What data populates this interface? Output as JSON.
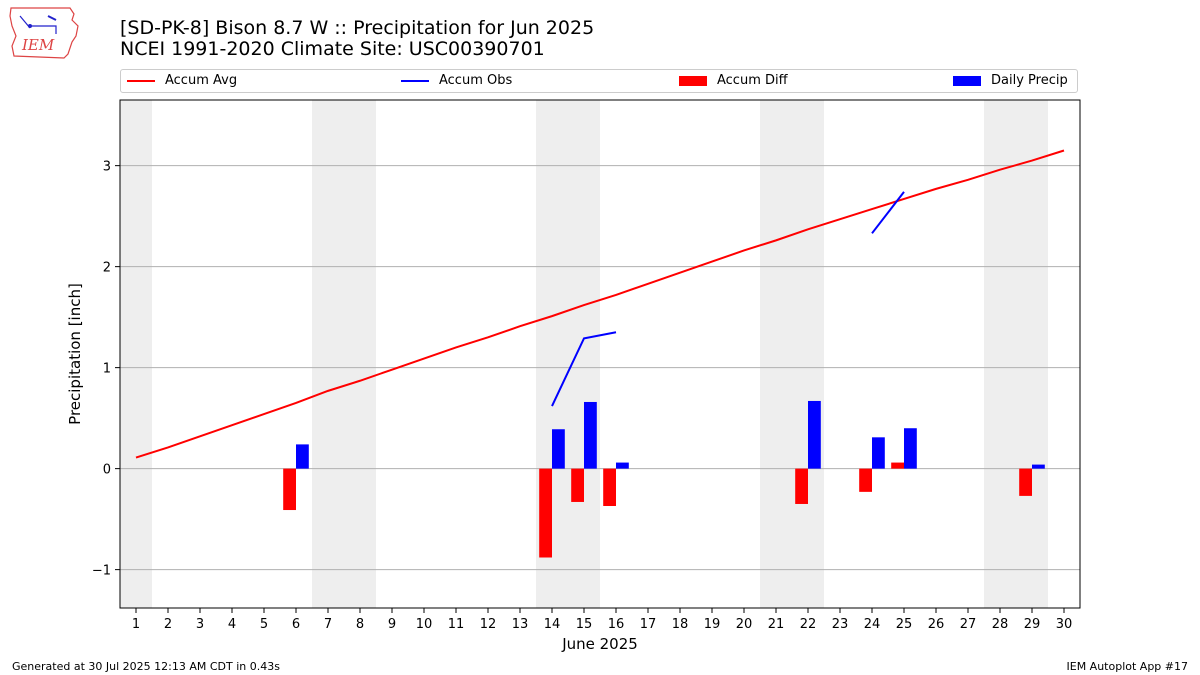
{
  "header": {
    "title_line1": "[SD-PK-8] Bison 8.7 W :: Precipitation for Jun 2025",
    "title_line2": "NCEI 1991-2020 Climate Site: USC00390701",
    "logo_text": "IEM"
  },
  "legend": {
    "accum_avg": "Accum Avg",
    "accum_obs": "Accum Obs",
    "accum_diff": "Accum Diff",
    "daily_precip": "Daily Precip"
  },
  "footer": {
    "generated": "Generated at 30 Jul 2025 12:13 AM CDT in 0.43s",
    "app": "IEM Autoplot App #17"
  },
  "colors": {
    "accum_avg": "#ff0000",
    "accum_obs": "#0000ff",
    "accum_diff": "#ff0000",
    "daily_precip": "#0000ff",
    "weekend_shade": "#eeeeee",
    "grid": "#b0b0b0"
  },
  "chart_data": {
    "type": "bar",
    "xlabel": "June 2025",
    "ylabel": "Precipitation [inch]",
    "xlim": [
      0.5,
      30.5
    ],
    "ylim": [
      -1.38,
      3.65
    ],
    "x_ticks": [
      1,
      2,
      3,
      4,
      5,
      6,
      7,
      8,
      9,
      10,
      11,
      12,
      13,
      14,
      15,
      16,
      17,
      18,
      19,
      20,
      21,
      22,
      23,
      24,
      25,
      26,
      27,
      28,
      29,
      30
    ],
    "y_ticks": [
      -1,
      0,
      1,
      2,
      3
    ],
    "y_tick_labels": [
      "−1",
      "0",
      "1",
      "2",
      "3"
    ],
    "grid": "horizontal",
    "legend_position": "top",
    "shaded_days": [
      1,
      7,
      8,
      14,
      15,
      21,
      22,
      28,
      29
    ],
    "accum_avg": {
      "days": [
        1,
        2,
        3,
        4,
        5,
        6,
        7,
        8,
        9,
        10,
        11,
        12,
        13,
        14,
        15,
        16,
        17,
        18,
        19,
        20,
        21,
        22,
        23,
        24,
        25,
        26,
        27,
        28,
        29,
        30
      ],
      "values": [
        0.11,
        0.21,
        0.32,
        0.43,
        0.54,
        0.65,
        0.77,
        0.87,
        0.98,
        1.09,
        1.2,
        1.3,
        1.41,
        1.51,
        1.62,
        1.72,
        1.83,
        1.94,
        2.05,
        2.16,
        2.26,
        2.37,
        2.47,
        2.57,
        2.67,
        2.77,
        2.86,
        2.96,
        3.05,
        3.15
      ]
    },
    "accum_obs": [
      {
        "days": [
          14,
          15,
          16
        ],
        "values": [
          0.62,
          1.29,
          1.35
        ]
      },
      {
        "days": [
          24,
          25
        ],
        "values": [
          2.33,
          2.74
        ]
      }
    ],
    "accum_diff": {
      "days": [
        6,
        14,
        15,
        16,
        22,
        24,
        25,
        29
      ],
      "values": [
        -0.41,
        -0.88,
        -0.33,
        -0.37,
        -0.35,
        -0.23,
        0.06,
        -0.27
      ]
    },
    "daily_precip": {
      "days": [
        6,
        14,
        15,
        16,
        22,
        24,
        25,
        29
      ],
      "values": [
        0.24,
        0.39,
        0.66,
        0.06,
        0.67,
        0.31,
        0.4,
        0.04
      ]
    }
  }
}
